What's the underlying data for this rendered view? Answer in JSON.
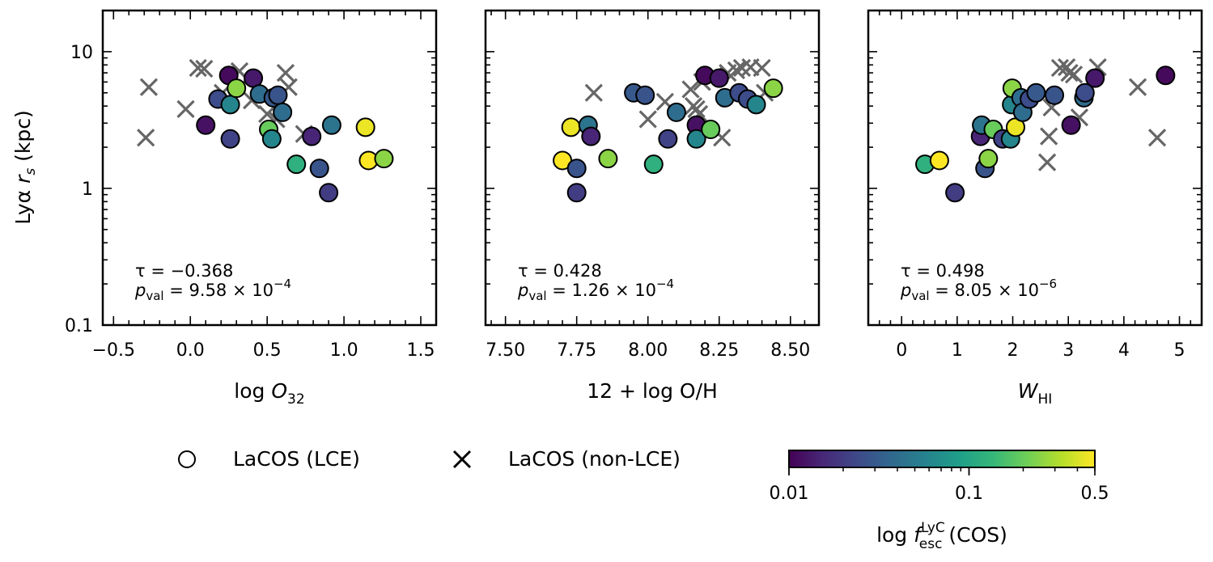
{
  "chart_data": [
    {
      "type": "scatter",
      "panel": "left",
      "xlabel": "log O32",
      "ylabel": "Lyα r_s (kpc)",
      "xlim": [
        -0.57,
        1.6
      ],
      "ylim": [
        0.1,
        20
      ],
      "yscale": "log",
      "xticks": [
        -0.5,
        0.0,
        0.5,
        1.0,
        1.5
      ],
      "xtick_labels": [
        "−0.5",
        "0.0",
        "0.5",
        "1.0",
        "1.5"
      ],
      "yticks": [
        0.1,
        1,
        10
      ],
      "ytick_labels": [
        "0.1",
        "1",
        "10"
      ],
      "stats": {
        "tau": "−0.368",
        "pval_mantissa": "9.58",
        "pval_exp": "−4"
      },
      "lce": [
        {
          "x": 0.1,
          "y": 2.9,
          "fesc": 0.012
        },
        {
          "x": 0.18,
          "y": 4.5,
          "fesc": 0.025
        },
        {
          "x": 0.25,
          "y": 6.7,
          "fesc": 0.011
        },
        {
          "x": 0.26,
          "y": 4.1,
          "fesc": 0.06
        },
        {
          "x": 0.26,
          "y": 2.3,
          "fesc": 0.022
        },
        {
          "x": 0.3,
          "y": 5.4,
          "fesc": 0.25
        },
        {
          "x": 0.41,
          "y": 6.4,
          "fesc": 0.013
        },
        {
          "x": 0.45,
          "y": 4.9,
          "fesc": 0.04
        },
        {
          "x": 0.51,
          "y": 2.7,
          "fesc": 0.2
        },
        {
          "x": 0.53,
          "y": 2.3,
          "fesc": 0.06
        },
        {
          "x": 0.54,
          "y": 4.6,
          "fesc": 0.03
        },
        {
          "x": 0.57,
          "y": 4.8,
          "fesc": 0.028
        },
        {
          "x": 0.6,
          "y": 3.6,
          "fesc": 0.04
        },
        {
          "x": 0.69,
          "y": 1.5,
          "fesc": 0.12
        },
        {
          "x": 0.79,
          "y": 2.4,
          "fesc": 0.015
        },
        {
          "x": 0.84,
          "y": 1.4,
          "fesc": 0.028
        },
        {
          "x": 0.9,
          "y": 0.93,
          "fesc": 0.02
        },
        {
          "x": 0.92,
          "y": 2.9,
          "fesc": 0.045
        },
        {
          "x": 1.14,
          "y": 2.8,
          "fesc": 0.45
        },
        {
          "x": 1.16,
          "y": 1.6,
          "fesc": 0.5
        },
        {
          "x": 1.26,
          "y": 1.65,
          "fesc": 0.25
        }
      ],
      "non_lce": [
        {
          "x": -0.27,
          "y": 5.5
        },
        {
          "x": -0.29,
          "y": 2.35
        },
        {
          "x": -0.03,
          "y": 3.8
        },
        {
          "x": 0.05,
          "y": 7.6
        },
        {
          "x": 0.09,
          "y": 7.5
        },
        {
          "x": 0.21,
          "y": 5.0
        },
        {
          "x": 0.32,
          "y": 7.2
        },
        {
          "x": 0.37,
          "y": 6.3
        },
        {
          "x": 0.4,
          "y": 4.4
        },
        {
          "x": 0.5,
          "y": 3.5
        },
        {
          "x": 0.56,
          "y": 3.2
        },
        {
          "x": 0.62,
          "y": 7.0
        },
        {
          "x": 0.64,
          "y": 5.5
        },
        {
          "x": 0.74,
          "y": 2.5
        }
      ]
    },
    {
      "type": "scatter",
      "panel": "middle",
      "xlabel": "12 + log O/H",
      "xlim": [
        7.43,
        8.6
      ],
      "ylim": [
        0.1,
        20
      ],
      "yscale": "log",
      "xticks": [
        7.5,
        7.75,
        8.0,
        8.25,
        8.5
      ],
      "xtick_labels": [
        "7.50",
        "7.75",
        "8.00",
        "8.25",
        "8.50"
      ],
      "stats": {
        "tau": "0.428",
        "pval_mantissa": "1.26",
        "pval_exp": "−4"
      },
      "lce": [
        {
          "x": 7.7,
          "y": 1.6,
          "fesc": 0.5
        },
        {
          "x": 7.73,
          "y": 2.8,
          "fesc": 0.45
        },
        {
          "x": 7.75,
          "y": 1.4,
          "fesc": 0.028
        },
        {
          "x": 7.75,
          "y": 0.93,
          "fesc": 0.02
        },
        {
          "x": 7.79,
          "y": 2.9,
          "fesc": 0.045
        },
        {
          "x": 7.8,
          "y": 2.4,
          "fesc": 0.015
        },
        {
          "x": 7.86,
          "y": 1.65,
          "fesc": 0.25
        },
        {
          "x": 7.95,
          "y": 5.0,
          "fesc": 0.03
        },
        {
          "x": 7.99,
          "y": 4.8,
          "fesc": 0.028
        },
        {
          "x": 8.02,
          "y": 1.5,
          "fesc": 0.12
        },
        {
          "x": 8.07,
          "y": 2.3,
          "fesc": 0.022
        },
        {
          "x": 8.1,
          "y": 3.6,
          "fesc": 0.04
        },
        {
          "x": 8.17,
          "y": 2.9,
          "fesc": 0.012
        },
        {
          "x": 8.17,
          "y": 2.3,
          "fesc": 0.06
        },
        {
          "x": 8.2,
          "y": 6.7,
          "fesc": 0.011
        },
        {
          "x": 8.22,
          "y": 2.7,
          "fesc": 0.2
        },
        {
          "x": 8.25,
          "y": 6.4,
          "fesc": 0.013
        },
        {
          "x": 8.27,
          "y": 4.6,
          "fesc": 0.04
        },
        {
          "x": 8.32,
          "y": 5.0,
          "fesc": 0.025
        },
        {
          "x": 8.35,
          "y": 4.5,
          "fesc": 0.025
        },
        {
          "x": 8.38,
          "y": 4.1,
          "fesc": 0.06
        },
        {
          "x": 8.44,
          "y": 5.4,
          "fesc": 0.25
        }
      ],
      "non_lce": [
        {
          "x": 7.81,
          "y": 5.0
        },
        {
          "x": 8.0,
          "y": 3.2
        },
        {
          "x": 8.06,
          "y": 4.3
        },
        {
          "x": 8.15,
          "y": 5.3
        },
        {
          "x": 8.16,
          "y": 4.0
        },
        {
          "x": 8.17,
          "y": 3.8
        },
        {
          "x": 8.18,
          "y": 3.5
        },
        {
          "x": 8.19,
          "y": 6.0
        },
        {
          "x": 8.23,
          "y": 6.6
        },
        {
          "x": 8.26,
          "y": 2.35
        },
        {
          "x": 8.28,
          "y": 7.0
        },
        {
          "x": 8.31,
          "y": 7.3
        },
        {
          "x": 8.33,
          "y": 7.6
        },
        {
          "x": 8.36,
          "y": 7.7
        },
        {
          "x": 8.4,
          "y": 7.6
        },
        {
          "x": 8.41,
          "y": 5.0
        }
      ]
    },
    {
      "type": "scatter",
      "panel": "right",
      "xlabel": "W_HI",
      "xlim": [
        -0.6,
        5.4
      ],
      "ylim": [
        0.1,
        20
      ],
      "yscale": "log",
      "xticks": [
        0,
        1,
        2,
        3,
        4,
        5
      ],
      "xtick_labels": [
        "0",
        "1",
        "2",
        "3",
        "4",
        "5"
      ],
      "stats": {
        "tau": "0.498",
        "pval_mantissa": "8.05",
        "pval_exp": "−6"
      },
      "lce": [
        {
          "x": 0.42,
          "y": 1.5,
          "fesc": 0.12
        },
        {
          "x": 0.68,
          "y": 1.6,
          "fesc": 0.5
        },
        {
          "x": 0.96,
          "y": 0.93,
          "fesc": 0.02
        },
        {
          "x": 1.42,
          "y": 2.4,
          "fesc": 0.015
        },
        {
          "x": 1.44,
          "y": 2.9,
          "fesc": 0.045
        },
        {
          "x": 1.5,
          "y": 1.4,
          "fesc": 0.028
        },
        {
          "x": 1.56,
          "y": 1.65,
          "fesc": 0.25
        },
        {
          "x": 1.65,
          "y": 2.7,
          "fesc": 0.2
        },
        {
          "x": 1.82,
          "y": 2.3,
          "fesc": 0.022
        },
        {
          "x": 1.96,
          "y": 2.3,
          "fesc": 0.06
        },
        {
          "x": 1.98,
          "y": 4.1,
          "fesc": 0.06
        },
        {
          "x": 1.99,
          "y": 5.4,
          "fesc": 0.25
        },
        {
          "x": 2.05,
          "y": 2.8,
          "fesc": 0.45
        },
        {
          "x": 2.15,
          "y": 4.6,
          "fesc": 0.04
        },
        {
          "x": 2.18,
          "y": 3.6,
          "fesc": 0.04
        },
        {
          "x": 2.3,
          "y": 4.5,
          "fesc": 0.025
        },
        {
          "x": 2.42,
          "y": 5.0,
          "fesc": 0.03
        },
        {
          "x": 2.75,
          "y": 4.8,
          "fesc": 0.028
        },
        {
          "x": 3.05,
          "y": 2.9,
          "fesc": 0.012
        },
        {
          "x": 3.28,
          "y": 4.6,
          "fesc": 0.04
        },
        {
          "x": 3.3,
          "y": 5.0,
          "fesc": 0.025
        },
        {
          "x": 3.48,
          "y": 6.4,
          "fesc": 0.013
        },
        {
          "x": 4.75,
          "y": 6.7,
          "fesc": 0.011
        }
      ],
      "non_lce": [
        {
          "x": 2.62,
          "y": 1.55
        },
        {
          "x": 2.65,
          "y": 2.4
        },
        {
          "x": 2.7,
          "y": 3.9
        },
        {
          "x": 2.85,
          "y": 7.6
        },
        {
          "x": 2.97,
          "y": 7.7
        },
        {
          "x": 3.02,
          "y": 7.0
        },
        {
          "x": 3.1,
          "y": 6.8
        },
        {
          "x": 3.2,
          "y": 3.3
        },
        {
          "x": 3.53,
          "y": 7.7
        },
        {
          "x": 4.25,
          "y": 5.5
        },
        {
          "x": 4.6,
          "y": 2.35
        }
      ]
    }
  ],
  "legend": {
    "lce_label": "LaCOS (LCE)",
    "non_lce_label": "LaCOS (non-LCE)"
  },
  "colorbar": {
    "cmap": "viridis",
    "range": [
      0.01,
      0.5
    ],
    "ticks": [
      0.01,
      0.1,
      0.5
    ],
    "tick_labels": [
      "0.01",
      "0.1",
      "0.5"
    ],
    "label_prefix": "log ",
    "label_var": "f",
    "label_sup": "LyC",
    "label_sub": "esc",
    "label_suffix": " (COS)"
  },
  "colors": {
    "cross": "#666666",
    "edge": "#000000",
    "viridis": [
      "#440154",
      "#482878",
      "#3e4989",
      "#31688e",
      "#26828e",
      "#1f9e89",
      "#35b779",
      "#6ece58",
      "#b5de2b",
      "#fde725"
    ]
  },
  "text": {
    "tau_prefix": "τ = ",
    "p_symbol": "p",
    "p_sub": "val",
    "times_ten": " = {m} × 10"
  }
}
